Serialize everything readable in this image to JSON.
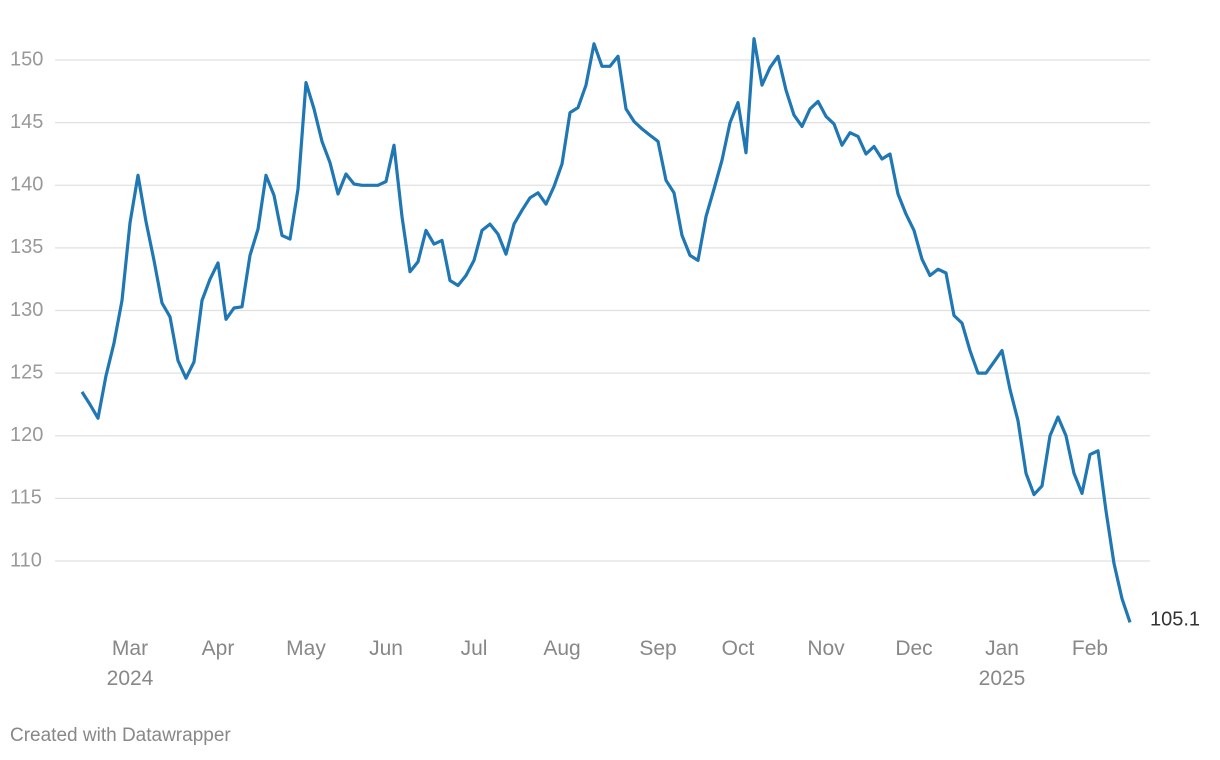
{
  "chart_data": {
    "type": "line",
    "categories": [
      null,
      null,
      null,
      null,
      null,
      null,
      "Mar\n2024",
      null,
      null,
      null,
      null,
      null,
      null,
      null,
      null,
      null,
      null,
      "Apr",
      null,
      null,
      null,
      null,
      null,
      null,
      null,
      null,
      null,
      null,
      "May",
      null,
      null,
      null,
      null,
      null,
      null,
      null,
      null,
      null,
      "Jun",
      null,
      null,
      null,
      null,
      null,
      null,
      null,
      null,
      null,
      null,
      "Jul",
      null,
      null,
      null,
      null,
      null,
      null,
      null,
      null,
      null,
      null,
      "Aug",
      null,
      null,
      null,
      null,
      null,
      null,
      null,
      null,
      null,
      null,
      null,
      "Sep",
      null,
      null,
      null,
      null,
      null,
      null,
      null,
      null,
      null,
      "Oct",
      null,
      null,
      null,
      null,
      null,
      null,
      null,
      null,
      null,
      null,
      "Nov",
      null,
      null,
      null,
      null,
      null,
      null,
      null,
      null,
      null,
      null,
      "Dec",
      null,
      null,
      null,
      null,
      null,
      null,
      null,
      null,
      null,
      null,
      "Jan\n2025",
      null,
      null,
      null,
      null,
      null,
      null,
      null,
      null,
      null,
      null,
      "Feb",
      null,
      null,
      null,
      null,
      null
    ],
    "values": [
      123.5,
      122.5,
      121.4,
      124.8,
      127.4,
      130.8,
      137,
      140.8,
      137.1,
      134,
      130.6,
      129.5,
      126,
      124.6,
      125.9,
      130.8,
      132.5,
      133.8,
      129.3,
      130.2,
      130.3,
      134.4,
      136.5,
      140.8,
      139.2,
      136,
      135.7,
      139.7,
      148.2,
      146.1,
      143.5,
      141.8,
      139.3,
      140.9,
      140.1,
      140,
      140,
      140,
      140.3,
      143.2,
      137.5,
      133.1,
      133.9,
      136.4,
      135.3,
      135.6,
      132.4,
      132,
      132.8,
      134,
      136.4,
      136.9,
      136.1,
      134.5,
      136.9,
      138,
      139,
      139.4,
      138.5,
      139.9,
      141.7,
      145.8,
      146.2,
      148,
      151.3,
      149.5,
      149.5,
      150.3,
      146.1,
      145.1,
      144.5,
      144,
      143.5,
      140.4,
      139.4,
      136,
      134.4,
      134,
      137.5,
      139.7,
      142,
      145,
      146.6,
      142.6,
      151.7,
      148,
      149.4,
      150.3,
      147.6,
      145.6,
      144.7,
      146.1,
      146.7,
      145.5,
      144.9,
      143.2,
      144.2,
      143.9,
      142.5,
      143.1,
      142.1,
      142.5,
      139.3,
      137.7,
      136.4,
      134.1,
      132.8,
      133.3,
      133,
      129.6,
      129,
      126.8,
      125,
      125,
      125.9,
      126.8,
      123.7,
      121.2,
      117,
      115.3,
      116,
      120,
      121.5,
      120,
      117,
      115.4,
      118.5,
      118.8,
      114,
      109.8,
      107,
      105.1
    ],
    "color": "#1f77b4",
    "ylim": [
      104.5,
      153.5
    ],
    "yticks": [
      110,
      115,
      120,
      125,
      130,
      135,
      140,
      145,
      150
    ],
    "grid": true,
    "credit": "Created with Datawrapper"
  }
}
